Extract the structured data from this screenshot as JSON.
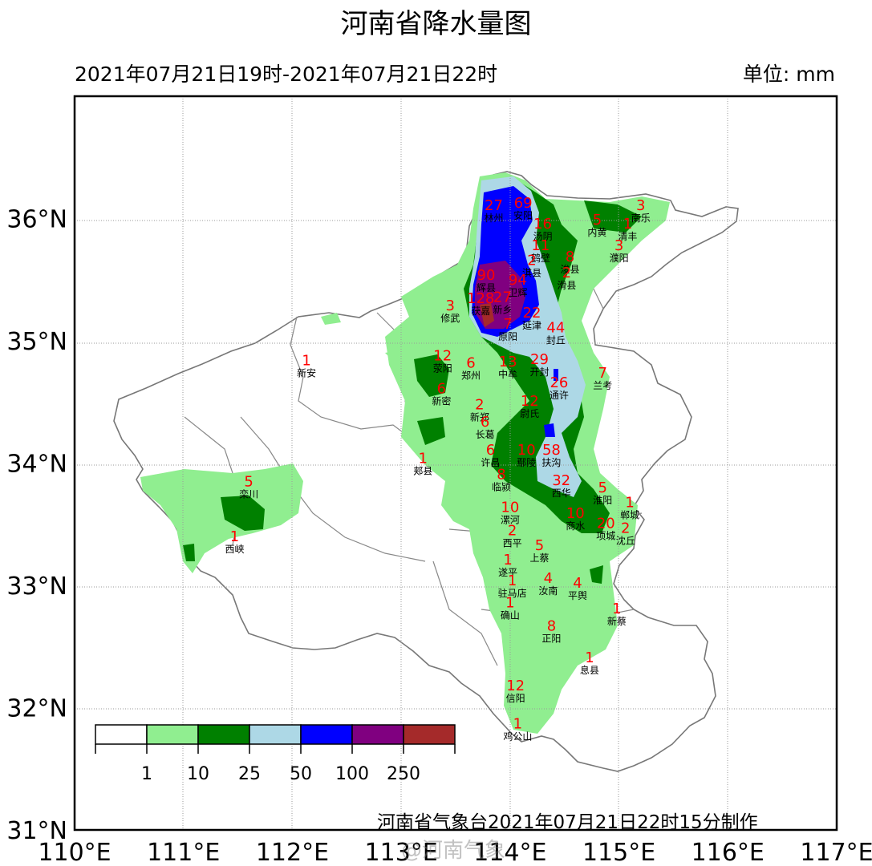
{
  "title": "河南省降水量图",
  "period": "2021年07月21日19时-2021年07月21日22时",
  "unit": "单位: mm",
  "footer": "河南省气象台2021年07月21日22时15分制作",
  "watermark": "@河南气象",
  "axes": {
    "lon_ticks": [
      "110°E",
      "111°E",
      "112°E",
      "113°E",
      "114°E",
      "115°E",
      "116°E",
      "117°E"
    ],
    "lat_ticks": [
      "31°N",
      "32°N",
      "33°N",
      "34°N",
      "35°N",
      "36°N"
    ],
    "lon_range": [
      110,
      117
    ],
    "lat_range": [
      31,
      37
    ],
    "grid": true
  },
  "legend": {
    "labels": [
      "1",
      "10",
      "25",
      "50",
      "100",
      "250"
    ],
    "colors": [
      "#ffffff",
      "#90ee90",
      "#008000",
      "#add8e6",
      "#0000ff",
      "#800080",
      "#a52a2a"
    ]
  },
  "stations": [
    {
      "name": "林州",
      "value": "27",
      "lon": 113.85,
      "lat": 36.05
    },
    {
      "name": "安阳",
      "value": "69",
      "lon": 114.12,
      "lat": 36.07
    },
    {
      "name": "汤阴",
      "value": "16",
      "lon": 114.3,
      "lat": 35.9
    },
    {
      "name": "内黄",
      "value": "5",
      "lon": 114.8,
      "lat": 35.93
    },
    {
      "name": "清丰",
      "value": "1",
      "lon": 115.08,
      "lat": 35.9
    },
    {
      "name": "南乐",
      "value": "3",
      "lon": 115.2,
      "lat": 36.05
    },
    {
      "name": "鹤壁",
      "value": "11",
      "lon": 114.28,
      "lat": 35.72
    },
    {
      "name": "淇县",
      "value": "2",
      "lon": 114.2,
      "lat": 35.6
    },
    {
      "name": "浚县",
      "value": "8",
      "lon": 114.55,
      "lat": 35.63
    },
    {
      "name": "濮阳",
      "value": "3",
      "lon": 115.0,
      "lat": 35.72
    },
    {
      "name": "辉县",
      "value": "90",
      "lon": 113.78,
      "lat": 35.48
    },
    {
      "name": "卫辉",
      "value": "94",
      "lon": 114.07,
      "lat": 35.44
    },
    {
      "name": "滑县",
      "value": "2",
      "lon": 114.52,
      "lat": 35.5
    },
    {
      "name": "修武",
      "value": "3",
      "lon": 113.45,
      "lat": 35.23
    },
    {
      "name": "获嘉",
      "value": "128",
      "lon": 113.73,
      "lat": 35.29
    },
    {
      "name": "新乡",
      "value": "27",
      "lon": 113.93,
      "lat": 35.3
    },
    {
      "name": "延津",
      "value": "22",
      "lon": 114.2,
      "lat": 35.17
    },
    {
      "name": "原阳",
      "value": "7",
      "lon": 113.98,
      "lat": 35.08
    },
    {
      "name": "封丘",
      "value": "44",
      "lon": 114.42,
      "lat": 35.05
    },
    {
      "name": "新安",
      "value": "1",
      "lon": 112.13,
      "lat": 34.78
    },
    {
      "name": "荥阳",
      "value": "12",
      "lon": 113.38,
      "lat": 34.82
    },
    {
      "name": "郑州",
      "value": "6",
      "lon": 113.64,
      "lat": 34.76
    },
    {
      "name": "中牟",
      "value": "13",
      "lon": 113.98,
      "lat": 34.77
    },
    {
      "name": "开封",
      "value": "29",
      "lon": 114.27,
      "lat": 34.79
    },
    {
      "name": "兰考",
      "value": "7",
      "lon": 114.85,
      "lat": 34.68
    },
    {
      "name": "新密",
      "value": "6",
      "lon": 113.37,
      "lat": 34.55
    },
    {
      "name": "通许",
      "value": "26",
      "lon": 114.45,
      "lat": 34.6
    },
    {
      "name": "新郑",
      "value": "2",
      "lon": 113.72,
      "lat": 34.42
    },
    {
      "name": "尉氏",
      "value": "12",
      "lon": 114.18,
      "lat": 34.45
    },
    {
      "name": "长葛",
      "value": "6",
      "lon": 113.77,
      "lat": 34.28
    },
    {
      "name": "郏县",
      "value": "1",
      "lon": 113.2,
      "lat": 33.98
    },
    {
      "name": "许昌",
      "value": "6",
      "lon": 113.82,
      "lat": 34.05
    },
    {
      "name": "鄢陵",
      "value": "10",
      "lon": 114.15,
      "lat": 34.05
    },
    {
      "name": "扶沟",
      "value": "58",
      "lon": 114.38,
      "lat": 34.05
    },
    {
      "name": "栾川",
      "value": "5",
      "lon": 111.6,
      "lat": 33.79
    },
    {
      "name": "临颍",
      "value": "8",
      "lon": 113.92,
      "lat": 33.85
    },
    {
      "name": "西华",
      "value": "32",
      "lon": 114.47,
      "lat": 33.8
    },
    {
      "name": "淮阳",
      "value": "5",
      "lon": 114.85,
      "lat": 33.74
    },
    {
      "name": "郸城",
      "value": "1",
      "lon": 115.1,
      "lat": 33.62
    },
    {
      "name": "漯河",
      "value": "10",
      "lon": 114.0,
      "lat": 33.58
    },
    {
      "name": "商水",
      "value": "10",
      "lon": 114.6,
      "lat": 33.53
    },
    {
      "name": "项城",
      "value": "20",
      "lon": 114.88,
      "lat": 33.45
    },
    {
      "name": "沈丘",
      "value": "2",
      "lon": 115.06,
      "lat": 33.41
    },
    {
      "name": "西峡",
      "value": "1",
      "lon": 111.47,
      "lat": 33.34
    },
    {
      "name": "西平",
      "value": "2",
      "lon": 114.02,
      "lat": 33.39
    },
    {
      "name": "上蔡",
      "value": "5",
      "lon": 114.27,
      "lat": 33.27
    },
    {
      "name": "遂平",
      "value": "1",
      "lon": 113.98,
      "lat": 33.15
    },
    {
      "name": "驻马店",
      "value": "1",
      "lon": 114.02,
      "lat": 32.98
    },
    {
      "name": "汝南",
      "value": "4",
      "lon": 114.35,
      "lat": 33.0
    },
    {
      "name": "平舆",
      "value": "4",
      "lon": 114.62,
      "lat": 32.96
    },
    {
      "name": "确山",
      "value": "1",
      "lon": 114.0,
      "lat": 32.8
    },
    {
      "name": "新蔡",
      "value": "1",
      "lon": 114.98,
      "lat": 32.75
    },
    {
      "name": "正阳",
      "value": "8",
      "lon": 114.38,
      "lat": 32.61
    },
    {
      "name": "息县",
      "value": "1",
      "lon": 114.73,
      "lat": 32.35
    },
    {
      "name": "信阳",
      "value": "12",
      "lon": 114.05,
      "lat": 32.12
    },
    {
      "name": "鸡公山",
      "value": "1",
      "lon": 114.07,
      "lat": 31.81
    }
  ]
}
